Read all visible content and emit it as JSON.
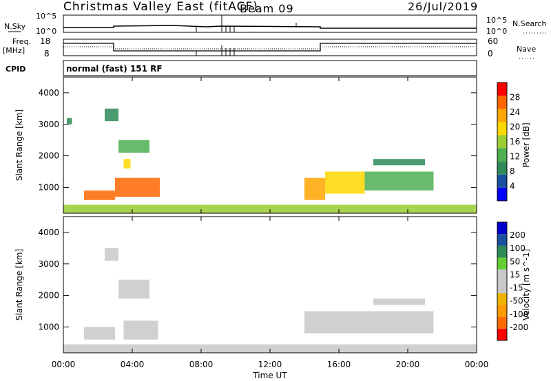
{
  "header": {
    "title": "Christmas Valley East (fitACF)",
    "beam": "Beam 09",
    "date": "26/Jul/2019"
  },
  "top_panels": {
    "nsky_label": "N.Sky",
    "nsearch_label": "N.Search",
    "noise_ticks": [
      "10^5",
      "10^0"
    ],
    "freq_label": "Freq.",
    "freq_unit": "[MHz]",
    "freq_ticks": [
      "18",
      "8"
    ],
    "nave_label": "Nave",
    "nave_ticks": [
      "60",
      "0"
    ],
    "cpid_label": "CPID",
    "cpid_text": "normal (fast) 151 RF"
  },
  "colors": {
    "power": [
      "#0000ff",
      "#1b4f9f",
      "#2e8b57",
      "#4caf50",
      "#9acd32",
      "#ffd700",
      "#ffa500",
      "#ff6600",
      "#ff0000"
    ],
    "velocity": [
      "#ff0000",
      "#ff6a00",
      "#ff9900",
      "#f0b400",
      "#c8c8c8",
      "#c8c8c8",
      "#66cc33",
      "#2e8b57",
      "#1b4f9f",
      "#0000cc"
    ]
  },
  "chart_data": [
    {
      "type": "heatmap",
      "panel": "power",
      "ylabel": "Slant Range [km]",
      "yticks": [
        "1000",
        "2000",
        "3000",
        "4000"
      ],
      "ylim": [
        180,
        4500
      ],
      "colorbar_label": "Power [dB]",
      "colorbar_ticks": [
        "4",
        "8",
        "12",
        "16",
        "20",
        "24",
        "28"
      ],
      "colorbar_range": [
        0,
        30
      ],
      "regions": [
        {
          "t0": 1.2,
          "t1": 3.0,
          "r0": 600,
          "r1": 900,
          "v": 24
        },
        {
          "t0": 3.0,
          "t1": 5.6,
          "r0": 700,
          "r1": 1300,
          "v": 26
        },
        {
          "t0": 3.2,
          "t1": 5.0,
          "r0": 2100,
          "r1": 2500,
          "v": 12
        },
        {
          "t0": 3.5,
          "t1": 3.9,
          "r0": 1600,
          "r1": 1900,
          "v": 18
        },
        {
          "t0": 2.4,
          "t1": 3.2,
          "r0": 3100,
          "r1": 3500,
          "v": 8
        },
        {
          "t0": 0.2,
          "t1": 0.5,
          "r0": 3000,
          "r1": 3200,
          "v": 8
        },
        {
          "t0": 14.0,
          "t1": 15.2,
          "r0": 600,
          "r1": 1300,
          "v": 22
        },
        {
          "t0": 15.2,
          "t1": 17.5,
          "r0": 800,
          "r1": 1500,
          "v": 18
        },
        {
          "t0": 17.5,
          "t1": 21.5,
          "r0": 900,
          "r1": 1500,
          "v": 12
        },
        {
          "t0": 18.0,
          "t1": 21.0,
          "r0": 1700,
          "r1": 1900,
          "v": 8
        },
        {
          "t0": 0.0,
          "t1": 24.0,
          "r0": 180,
          "r1": 450,
          "v": 16
        }
      ]
    },
    {
      "type": "heatmap",
      "panel": "velocity",
      "xlabel": "Time UT",
      "ylabel": "Slant Range [km]",
      "xticks": [
        "00:00",
        "04:00",
        "08:00",
        "12:00",
        "16:00",
        "20:00",
        "00:00"
      ],
      "xlim": [
        0,
        24
      ],
      "yticks": [
        "1000",
        "2000",
        "3000",
        "4000"
      ],
      "ylim": [
        180,
        4500
      ],
      "colorbar_label": "Velocity [m s^-1]",
      "colorbar_ticks": [
        "-200",
        "-100",
        "-50",
        "-15",
        "15",
        "50",
        "100",
        "200"
      ],
      "colorbar_range": [
        -250,
        250
      ],
      "regions": [
        {
          "t0": 1.2,
          "t1": 3.0,
          "r0": 600,
          "r1": 1000,
          "v": 0
        },
        {
          "t0": 3.5,
          "t1": 5.5,
          "r0": 600,
          "r1": 1200,
          "v": 30
        },
        {
          "t0": 3.2,
          "t1": 5.0,
          "r0": 1900,
          "r1": 2500,
          "v": 0
        },
        {
          "t0": 2.4,
          "t1": 3.2,
          "r0": 3100,
          "r1": 3500,
          "v": 0
        },
        {
          "t0": 14.0,
          "t1": 21.5,
          "r0": 800,
          "r1": 1500,
          "v": 0
        },
        {
          "t0": 18.0,
          "t1": 21.0,
          "r0": 1700,
          "r1": 1900,
          "v": 0
        },
        {
          "t0": 0.0,
          "t1": 24.0,
          "r0": 180,
          "r1": 450,
          "v": -40
        }
      ]
    }
  ]
}
